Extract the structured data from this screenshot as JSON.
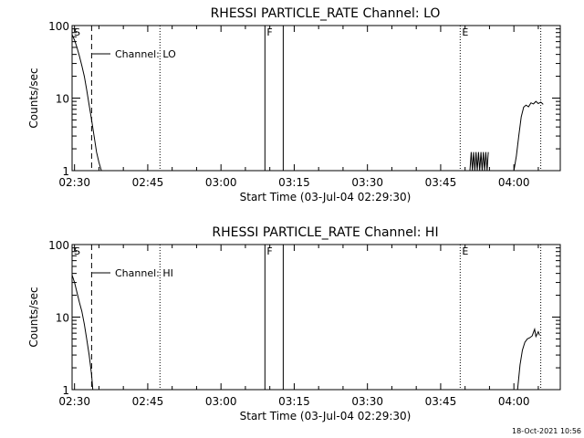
{
  "chart_data": [
    {
      "type": "line",
      "title": "RHESSI PARTICLE_RATE Channel: LO",
      "xlabel": "Start Time (03-Jul-04 02:29:30)",
      "ylabel": "Counts/sec",
      "yscale": "log",
      "ylim": [
        1,
        100
      ],
      "xlim": [
        "02:29:30",
        "04:09:30"
      ],
      "xticks": [
        "02:30",
        "02:45",
        "03:00",
        "03:15",
        "03:30",
        "03:45",
        "04:00"
      ],
      "yticks": [
        "1",
        "10",
        "100"
      ],
      "legend": "Channel: LO",
      "flags": [
        {
          "label": "S",
          "time": "02:29:30",
          "style": "none"
        },
        {
          "label": "",
          "time": "02:33:30",
          "style": "dashed"
        },
        {
          "label": "",
          "time": "02:47:30",
          "style": "dotted"
        },
        {
          "label": "F",
          "time": "03:09:00",
          "style": "solid"
        },
        {
          "label": "",
          "time": "03:12:45",
          "style": "solid"
        },
        {
          "label": "E",
          "time": "03:49:00",
          "style": "dotted"
        },
        {
          "label": "",
          "time": "04:05:30",
          "style": "dotted"
        }
      ],
      "series": [
        {
          "segments": [
            [
              [
                "02:29:30",
                75
              ],
              [
                "02:30:00",
                63
              ],
              [
                "02:30:30",
                50
              ],
              [
                "02:31:00",
                38
              ],
              [
                "02:31:30",
                28
              ],
              [
                "02:32:00",
                20
              ],
              [
                "02:32:30",
                13
              ],
              [
                "02:33:00",
                8
              ],
              [
                "02:33:30",
                5
              ],
              [
                "02:34:00",
                3
              ],
              [
                "02:34:30",
                1.8
              ],
              [
                "02:35:00",
                1.3
              ],
              [
                "02:35:30",
                1
              ]
            ],
            [
              [
                "03:51:00",
                1
              ],
              [
                "03:51:15",
                1.8
              ],
              [
                "03:51:30",
                1
              ],
              [
                "03:51:45",
                1.8
              ],
              [
                "03:52:00",
                1
              ],
              [
                "03:52:15",
                1.8
              ],
              [
                "03:52:30",
                1
              ],
              [
                "03:52:45",
                1.8
              ],
              [
                "03:53:00",
                1
              ],
              [
                "03:53:15",
                1.8
              ],
              [
                "03:53:30",
                1
              ],
              [
                "03:53:45",
                1.8
              ],
              [
                "03:54:00",
                1
              ],
              [
                "03:54:15",
                1.8
              ],
              [
                "03:54:30",
                1
              ],
              [
                "03:54:45",
                1.8
              ]
            ],
            [
              [
                "04:00:00",
                1
              ],
              [
                "04:00:30",
                1.6
              ],
              [
                "04:01:00",
                3
              ],
              [
                "04:01:30",
                5.5
              ],
              [
                "04:02:00",
                7.5
              ],
              [
                "04:02:30",
                8
              ],
              [
                "04:03:00",
                7.6
              ],
              [
                "04:03:30",
                8.6
              ],
              [
                "04:04:00",
                8.3
              ],
              [
                "04:04:30",
                9
              ],
              [
                "04:05:00",
                8.4
              ],
              [
                "04:05:30",
                8.8
              ],
              [
                "04:06:00",
                8.2
              ]
            ]
          ]
        }
      ]
    },
    {
      "type": "line",
      "title": "RHESSI PARTICLE_RATE Channel: HI",
      "xlabel": "Start Time (03-Jul-04 02:29:30)",
      "ylabel": "Counts/sec",
      "yscale": "log",
      "ylim": [
        1,
        100
      ],
      "xlim": [
        "02:29:30",
        "04:09:30"
      ],
      "xticks": [
        "02:30",
        "02:45",
        "03:00",
        "03:15",
        "03:30",
        "03:45",
        "04:00"
      ],
      "yticks": [
        "1",
        "10",
        "100"
      ],
      "legend": "Channel: HI",
      "flags": [
        {
          "label": "S",
          "time": "02:29:30",
          "style": "none"
        },
        {
          "label": "",
          "time": "02:33:30",
          "style": "dashed"
        },
        {
          "label": "",
          "time": "02:47:30",
          "style": "dotted"
        },
        {
          "label": "F",
          "time": "03:09:00",
          "style": "solid"
        },
        {
          "label": "",
          "time": "03:12:45",
          "style": "solid"
        },
        {
          "label": "E",
          "time": "03:49:00",
          "style": "dotted"
        },
        {
          "label": "",
          "time": "04:05:30",
          "style": "dotted"
        }
      ],
      "series": [
        {
          "segments": [
            [
              [
                "02:29:30",
                38
              ],
              [
                "02:30:00",
                30
              ],
              [
                "02:30:30",
                22
              ],
              [
                "02:31:00",
                16
              ],
              [
                "02:31:30",
                12
              ],
              [
                "02:32:00",
                8
              ],
              [
                "02:32:30",
                5
              ],
              [
                "02:33:00",
                3
              ],
              [
                "02:33:30",
                1.6
              ],
              [
                "02:33:45",
                1
              ]
            ],
            [
              [
                "04:00:45",
                1
              ],
              [
                "04:01:15",
                2.2
              ],
              [
                "04:01:45",
                3.5
              ],
              [
                "04:02:15",
                4.5
              ],
              [
                "04:02:45",
                5
              ],
              [
                "04:03:15",
                5.2
              ],
              [
                "04:03:45",
                5.5
              ],
              [
                "04:04:15",
                6.8
              ],
              [
                "04:04:30",
                5.4
              ],
              [
                "04:05:00",
                6.3
              ],
              [
                "04:05:15",
                5.6
              ]
            ]
          ]
        }
      ]
    }
  ],
  "footer": {
    "timestamp": "18-Oct-2021 10:56"
  }
}
